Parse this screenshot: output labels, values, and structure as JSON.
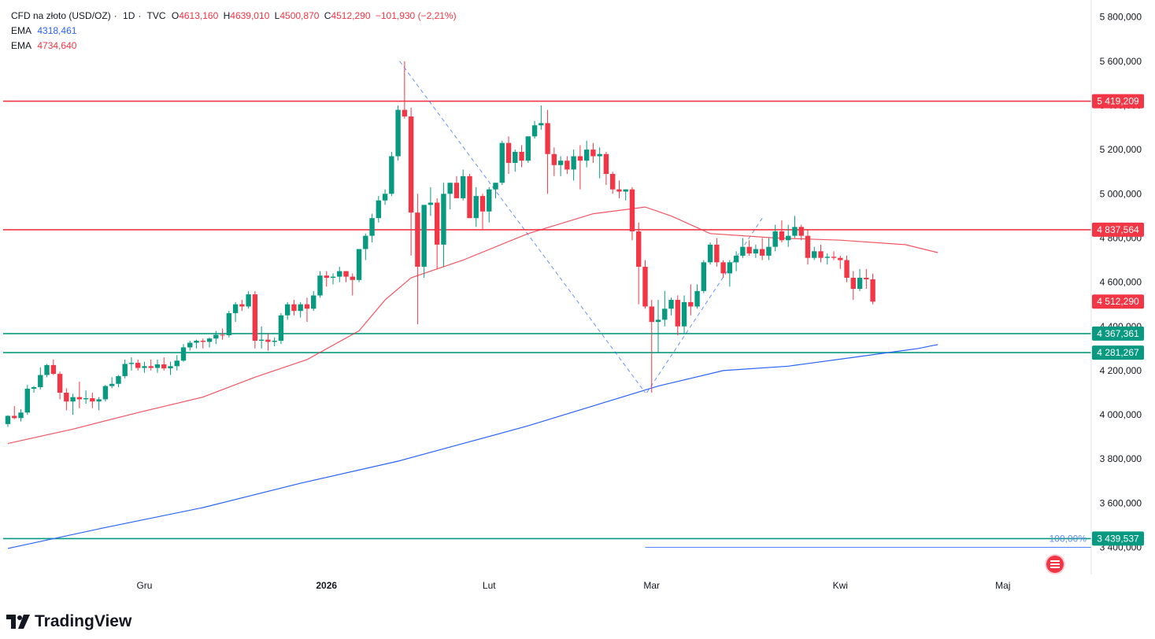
{
  "header": {
    "symbol": "CFD na złoto (USD/OZ)",
    "interval": "1D",
    "source": "TVC",
    "open_label": "O",
    "open": "4613,160",
    "high_label": "H",
    "high": "4639,010",
    "low_label": "L",
    "low": "4500,870",
    "close_label": "C",
    "close": "4512,290",
    "change": "−101,930 (−2,21%)",
    "ema_fast_label": "EMA",
    "ema_fast_value": "4318,461",
    "ema_slow_label": "EMA",
    "ema_slow_value": "4734,640"
  },
  "brand": "TradingView",
  "colors": {
    "up": "#089981",
    "down": "#f23645",
    "ema_fast": "#2962ff",
    "ema_slow": "#f23645",
    "resistance": "#f23645",
    "support": "#089981",
    "fib_line": "#2962ff",
    "grid": "#f0f3fa"
  },
  "chart_data": {
    "type": "candlestick",
    "y_axis": {
      "range": [
        3320,
        5870
      ],
      "ticks": [
        3400,
        3600,
        3800,
        4000,
        4200,
        4400,
        4600,
        4800,
        5000,
        5200,
        5400,
        5600,
        5800
      ],
      "tick_labels": [
        "3 400,000",
        "3 600,000",
        "3 800,000",
        "4 000,000",
        "4 200,000",
        "4 400,000",
        "4 600,000",
        "4 800,000",
        "5 000,000",
        "5 200,000",
        "5 400,000",
        "5 600,000",
        "5 800,000"
      ]
    },
    "x_axis": {
      "range": [
        0,
        143
      ],
      "month_labels": [
        {
          "index": 21,
          "label": "Gru"
        },
        {
          "index": 49,
          "label": "2026"
        },
        {
          "index": 74,
          "label": "Lut"
        },
        {
          "index": 99,
          "label": "Mar"
        },
        {
          "index": 128,
          "label": "Kwi"
        },
        {
          "index": 153,
          "label": "Maj"
        }
      ]
    },
    "ohlc": [
      [
        3958,
        3998,
        3945,
        3995
      ],
      [
        3995,
        4040,
        3980,
        3985
      ],
      [
        3985,
        4025,
        3970,
        4010
      ],
      [
        4010,
        4135,
        4000,
        4118
      ],
      [
        4118,
        4130,
        4100,
        4125
      ],
      [
        4125,
        4215,
        4115,
        4180
      ],
      [
        4180,
        4230,
        4170,
        4225
      ],
      [
        4225,
        4250,
        4180,
        4185
      ],
      [
        4185,
        4195,
        4070,
        4100
      ],
      [
        4100,
        4120,
        4020,
        4060
      ],
      [
        4060,
        4095,
        4000,
        4080
      ],
      [
        4080,
        4150,
        4030,
        4070
      ],
      [
        4070,
        4110,
        4050,
        4075
      ],
      [
        4075,
        4100,
        4030,
        4060
      ],
      [
        4060,
        4080,
        4020,
        4070
      ],
      [
        4070,
        4135,
        4060,
        4130
      ],
      [
        4130,
        4170,
        4120,
        4140
      ],
      [
        4140,
        4180,
        4125,
        4175
      ],
      [
        4175,
        4250,
        4165,
        4230
      ],
      [
        4230,
        4260,
        4200,
        4235
      ],
      [
        4235,
        4250,
        4200,
        4212
      ],
      [
        4212,
        4240,
        4190,
        4220
      ],
      [
        4220,
        4250,
        4200,
        4212
      ],
      [
        4212,
        4250,
        4190,
        4228
      ],
      [
        4228,
        4260,
        4200,
        4210
      ],
      [
        4210,
        4240,
        4180,
        4220
      ],
      [
        4220,
        4270,
        4200,
        4245
      ],
      [
        4245,
        4320,
        4240,
        4305
      ],
      [
        4305,
        4335,
        4290,
        4326
      ],
      [
        4326,
        4340,
        4300,
        4335
      ],
      [
        4335,
        4345,
        4300,
        4330
      ],
      [
        4330,
        4350,
        4305,
        4345
      ],
      [
        4345,
        4380,
        4320,
        4362
      ],
      [
        4362,
        4390,
        4340,
        4360
      ],
      [
        4360,
        4470,
        4350,
        4460
      ],
      [
        4460,
        4510,
        4420,
        4500
      ],
      [
        4500,
        4520,
        4470,
        4490
      ],
      [
        4490,
        4560,
        4480,
        4545
      ],
      [
        4545,
        4560,
        4300,
        4335
      ],
      [
        4335,
        4400,
        4300,
        4340
      ],
      [
        4340,
        4370,
        4290,
        4330
      ],
      [
        4330,
        4350,
        4310,
        4335
      ],
      [
        4335,
        4460,
        4320,
        4450
      ],
      [
        4450,
        4510,
        4430,
        4500
      ],
      [
        4500,
        4520,
        4450,
        4470
      ],
      [
        4470,
        4510,
        4440,
        4500
      ],
      [
        4500,
        4530,
        4420,
        4480
      ],
      [
        4480,
        4560,
        4470,
        4540
      ],
      [
        4540,
        4650,
        4530,
        4630
      ],
      [
        4630,
        4650,
        4580,
        4620
      ],
      [
        4620,
        4640,
        4590,
        4625
      ],
      [
        4625,
        4670,
        4600,
        4650
      ],
      [
        4650,
        4650,
        4600,
        4625
      ],
      [
        4625,
        4640,
        4540,
        4610
      ],
      [
        4610,
        4740,
        4600,
        4750
      ],
      [
        4750,
        4820,
        4700,
        4810
      ],
      [
        4810,
        4910,
        4780,
        4890
      ],
      [
        4890,
        4990,
        4870,
        4970
      ],
      [
        4970,
        5020,
        4950,
        5000
      ],
      [
        5000,
        5190,
        4990,
        5170
      ],
      [
        5170,
        5400,
        5150,
        5380
      ],
      [
        5380,
        5600,
        5340,
        5350
      ],
      [
        5350,
        5390,
        4720,
        4915
      ],
      [
        4915,
        5000,
        4410,
        4670
      ],
      [
        4670,
        4940,
        4620,
        4950
      ],
      [
        4950,
        5030,
        4900,
        4960
      ],
      [
        4960,
        4980,
        4660,
        4770
      ],
      [
        4770,
        5050,
        4670,
        5000
      ],
      [
        5000,
        5050,
        4930,
        5050
      ],
      [
        5050,
        5080,
        4990,
        4980
      ],
      [
        4980,
        5110,
        4970,
        5080
      ],
      [
        5080,
        5090,
        4900,
        4890
      ],
      [
        4890,
        5030,
        4850,
        4990
      ],
      [
        4990,
        5000,
        4840,
        4920
      ],
      [
        4920,
        5030,
        4870,
        5020
      ],
      [
        5020,
        5050,
        4980,
        5050
      ],
      [
        5050,
        5240,
        5040,
        5230
      ],
      [
        5230,
        5260,
        5090,
        5140
      ],
      [
        5140,
        5200,
        5100,
        5190
      ],
      [
        5190,
        5220,
        5120,
        5150
      ],
      [
        5150,
        5240,
        5140,
        5260
      ],
      [
        5260,
        5330,
        5250,
        5310
      ],
      [
        5310,
        5400,
        5290,
        5320
      ],
      [
        5320,
        5380,
        5000,
        5180
      ],
      [
        5180,
        5210,
        5080,
        5130
      ],
      [
        5130,
        5170,
        5080,
        5150
      ],
      [
        5150,
        5170,
        5090,
        5110
      ],
      [
        5110,
        5200,
        5060,
        5170
      ],
      [
        5170,
        5220,
        5020,
        5150
      ],
      [
        5150,
        5240,
        5120,
        5200
      ],
      [
        5200,
        5230,
        5140,
        5170
      ],
      [
        5170,
        5210,
        5070,
        5180
      ],
      [
        5180,
        5190,
        5040,
        5090
      ],
      [
        5090,
        5100,
        5000,
        5020
      ],
      [
        5020,
        5060,
        4980,
        5010
      ],
      [
        5010,
        5020,
        4970,
        5020
      ],
      [
        5020,
        5030,
        4790,
        4830
      ],
      [
        4830,
        4870,
        4500,
        4670
      ],
      [
        4670,
        4700,
        4480,
        4490
      ],
      [
        4490,
        4520,
        4100,
        4420
      ],
      [
        4420,
        4520,
        4280,
        4430
      ],
      [
        4430,
        4560,
        4400,
        4480
      ],
      [
        4480,
        4530,
        4450,
        4520
      ],
      [
        4520,
        4540,
        4360,
        4400
      ],
      [
        4400,
        4540,
        4370,
        4510
      ],
      [
        4510,
        4590,
        4450,
        4490
      ],
      [
        4490,
        4590,
        4480,
        4560
      ],
      [
        4560,
        4700,
        4550,
        4690
      ],
      [
        4690,
        4780,
        4680,
        4770
      ],
      [
        4770,
        4800,
        4670,
        4690
      ],
      [
        4690,
        4700,
        4620,
        4640
      ],
      [
        4640,
        4700,
        4580,
        4690
      ],
      [
        4690,
        4740,
        4650,
        4720
      ],
      [
        4720,
        4800,
        4710,
        4760
      ],
      [
        4760,
        4790,
        4720,
        4730
      ],
      [
        4730,
        4770,
        4710,
        4750
      ],
      [
        4750,
        4800,
        4700,
        4720
      ],
      [
        4720,
        4800,
        4700,
        4760
      ],
      [
        4760,
        4860,
        4740,
        4830
      ],
      [
        4830,
        4880,
        4780,
        4790
      ],
      [
        4790,
        4860,
        4760,
        4810
      ],
      [
        4810,
        4900,
        4800,
        4850
      ],
      [
        4850,
        4860,
        4790,
        4810
      ],
      [
        4810,
        4840,
        4680,
        4710
      ],
      [
        4710,
        4760,
        4700,
        4740
      ],
      [
        4740,
        4770,
        4690,
        4710
      ],
      [
        4710,
        4730,
        4680,
        4715
      ],
      [
        4715,
        4740,
        4700,
        4710
      ],
      [
        4710,
        4720,
        4660,
        4700
      ],
      [
        4700,
        4720,
        4600,
        4620
      ],
      [
        4620,
        4650,
        4520,
        4570
      ],
      [
        4570,
        4660,
        4560,
        4620
      ],
      [
        4620,
        4660,
        4570,
        4613
      ],
      [
        4613,
        4639,
        4500,
        4512
      ]
    ],
    "ema_fast": {
      "name": "EMA",
      "points": [
        [
          0,
          3395
        ],
        [
          15,
          3490
        ],
        [
          30,
          3580
        ],
        [
          45,
          3690
        ],
        [
          60,
          3790
        ],
        [
          70,
          3870
        ],
        [
          80,
          3950
        ],
        [
          90,
          4040
        ],
        [
          100,
          4130
        ],
        [
          110,
          4200
        ],
        [
          120,
          4220
        ],
        [
          130,
          4260
        ],
        [
          140,
          4300
        ],
        [
          143,
          4318
        ]
      ]
    },
    "ema_slow": {
      "name": "EMA",
      "points": [
        [
          0,
          3870
        ],
        [
          10,
          3935
        ],
        [
          20,
          4010
        ],
        [
          30,
          4080
        ],
        [
          38,
          4170
        ],
        [
          46,
          4250
        ],
        [
          54,
          4380
        ],
        [
          58,
          4520
        ],
        [
          62,
          4620
        ],
        [
          70,
          4700
        ],
        [
          80,
          4820
        ],
        [
          90,
          4910
        ],
        [
          98,
          4940
        ],
        [
          102,
          4900
        ],
        [
          108,
          4820
        ],
        [
          118,
          4800
        ],
        [
          128,
          4790
        ],
        [
          138,
          4770
        ],
        [
          143,
          4734
        ]
      ]
    },
    "resistance_lines": [
      5419.209,
      4837.564
    ],
    "support_lines": [
      4367.361,
      4281.267,
      3439.537
    ],
    "price_tags": [
      {
        "value": "5 419,209",
        "price": 5419.209,
        "kind": "resistance"
      },
      {
        "value": "4 837,564",
        "price": 4837.564,
        "kind": "resistance"
      },
      {
        "value": "4 512,290",
        "price": 4512.29,
        "kind": "last"
      },
      {
        "value": "4 367,361",
        "price": 4367.361,
        "kind": "support"
      },
      {
        "value": "4 281,267",
        "price": 4281.267,
        "kind": "support"
      },
      {
        "value": "3 439,537",
        "price": 3439.537,
        "kind": "support"
      }
    ],
    "fib_anchors": [
      [
        60,
        5600
      ],
      [
        98,
        4100
      ],
      [
        116,
        4890
      ]
    ],
    "fib_level": {
      "label": "100,00%",
      "price": 3400
    },
    "price_axis_values": {
      "last": "4 512,290"
    }
  }
}
